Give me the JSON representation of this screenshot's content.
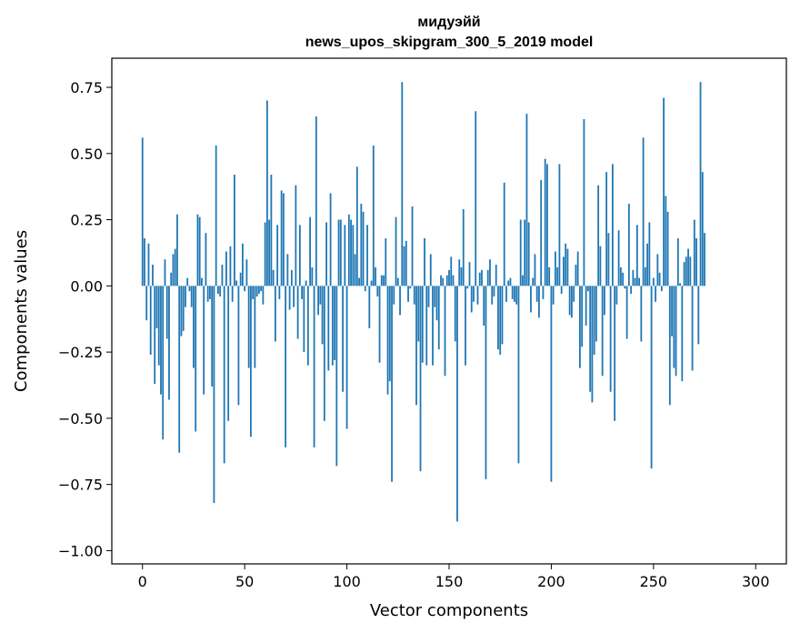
{
  "chart_data": {
    "type": "bar",
    "title": "мидуэйй",
    "subtitle": "news_upos_skipgram_300_5_2019 model",
    "xlabel": "Vector components",
    "ylabel": "Components values",
    "xlim": [
      -15,
      315
    ],
    "ylim": [
      -1.05,
      0.86
    ],
    "xticks": [
      0,
      50,
      100,
      150,
      200,
      250,
      300
    ],
    "xtick_labels": [
      "0",
      "50",
      "100",
      "150",
      "200",
      "250",
      "300"
    ],
    "yticks": [
      0.75,
      0.5,
      0.25,
      0.0,
      -0.25,
      -0.5,
      -0.75,
      -1.0
    ],
    "ytick_labels": [
      "0.75",
      "0.50",
      "0.25",
      "0.00",
      "−0.25",
      "−0.50",
      "−0.75",
      "−1.00"
    ],
    "bar_color": "#1f77b4",
    "series": [
      {
        "name": "components",
        "x_start": 0,
        "values": [
          0.56,
          0.18,
          -0.13,
          0.16,
          -0.26,
          0.08,
          -0.37,
          -0.16,
          -0.3,
          -0.41,
          -0.58,
          0.1,
          -0.2,
          -0.43,
          0.05,
          0.12,
          0.14,
          0.27,
          -0.63,
          -0.19,
          -0.17,
          -0.08,
          0.03,
          -0.02,
          -0.08,
          -0.31,
          -0.55,
          0.27,
          0.26,
          0.03,
          -0.41,
          0.2,
          -0.06,
          -0.05,
          -0.38,
          -0.82,
          0.53,
          -0.03,
          -0.04,
          0.08,
          -0.67,
          0.13,
          -0.51,
          0.15,
          -0.06,
          0.42,
          0.02,
          -0.45,
          0.05,
          0.16,
          -0.02,
          0.1,
          -0.31,
          -0.57,
          -0.05,
          -0.31,
          -0.04,
          -0.03,
          -0.02,
          -0.07,
          0.24,
          0.7,
          0.25,
          0.42,
          0.06,
          -0.21,
          0.23,
          -0.05,
          0.36,
          0.35,
          -0.61,
          0.12,
          -0.09,
          0.06,
          -0.08,
          0.38,
          -0.2,
          0.23,
          -0.05,
          -0.25,
          0.02,
          -0.3,
          0.26,
          0.07,
          -0.61,
          0.64,
          -0.11,
          -0.07,
          -0.22,
          -0.51,
          0.24,
          -0.32,
          0.35,
          -0.3,
          -0.28,
          -0.68,
          0.25,
          0.25,
          -0.4,
          0.23,
          -0.54,
          0.27,
          0.25,
          0.23,
          0.12,
          0.45,
          0.03,
          0.31,
          0.28,
          -0.02,
          0.23,
          -0.16,
          0.02,
          0.53,
          0.07,
          -0.04,
          -0.29,
          0.04,
          0.04,
          0.18,
          -0.41,
          -0.36,
          -0.74,
          -0.07,
          0.26,
          0.03,
          -0.11,
          0.77,
          0.15,
          0.17,
          -0.06,
          -0.01,
          0.3,
          -0.07,
          -0.45,
          -0.21,
          -0.7,
          -0.29,
          0.18,
          -0.3,
          -0.08,
          0.12,
          -0.3,
          -0.08,
          -0.13,
          -0.24,
          0.04,
          0.03,
          -0.34,
          0.04,
          0.06,
          0.11,
          0.04,
          -0.21,
          -0.89,
          0.1,
          0.07,
          0.29,
          -0.3,
          -0.01,
          0.09,
          -0.1,
          -0.06,
          0.66,
          -0.07,
          0.05,
          0.06,
          -0.15,
          -0.73,
          0.06,
          0.1,
          -0.07,
          -0.04,
          0.08,
          -0.24,
          -0.26,
          -0.22,
          0.39,
          -0.06,
          0.02,
          0.03,
          -0.05,
          -0.06,
          -0.07,
          -0.67,
          0.25,
          0.04,
          0.25,
          0.65,
          0.24,
          -0.1,
          0.03,
          0.12,
          -0.06,
          -0.12,
          0.4,
          -0.05,
          0.48,
          0.46,
          0.07,
          -0.74,
          -0.07,
          0.13,
          0.07,
          0.46,
          -0.03,
          0.11,
          0.16,
          0.14,
          -0.11,
          -0.12,
          -0.06,
          0.08,
          0.13,
          -0.31,
          -0.23,
          0.63,
          -0.15,
          -0.02,
          -0.4,
          -0.44,
          -0.26,
          -0.21,
          0.38,
          0.15,
          -0.34,
          -0.11,
          0.43,
          0.2,
          -0.4,
          0.46,
          -0.51,
          -0.07,
          0.21,
          0.07,
          0.05,
          -0.01,
          -0.2,
          0.31,
          -0.03,
          0.06,
          0.03,
          0.23,
          0.03,
          -0.21,
          0.56,
          0.07,
          0.16,
          0.24,
          -0.69,
          0.03,
          -0.06,
          0.12,
          0.05,
          -0.02,
          0.71,
          0.34,
          0.28,
          -0.45,
          -0.19,
          -0.31,
          -0.34,
          0.18,
          0.01,
          -0.36,
          0.09,
          0.11,
          0.14,
          0.11,
          -0.32,
          0.25,
          0.18,
          -0.22,
          0.77,
          0.43,
          0.2
        ]
      }
    ]
  }
}
